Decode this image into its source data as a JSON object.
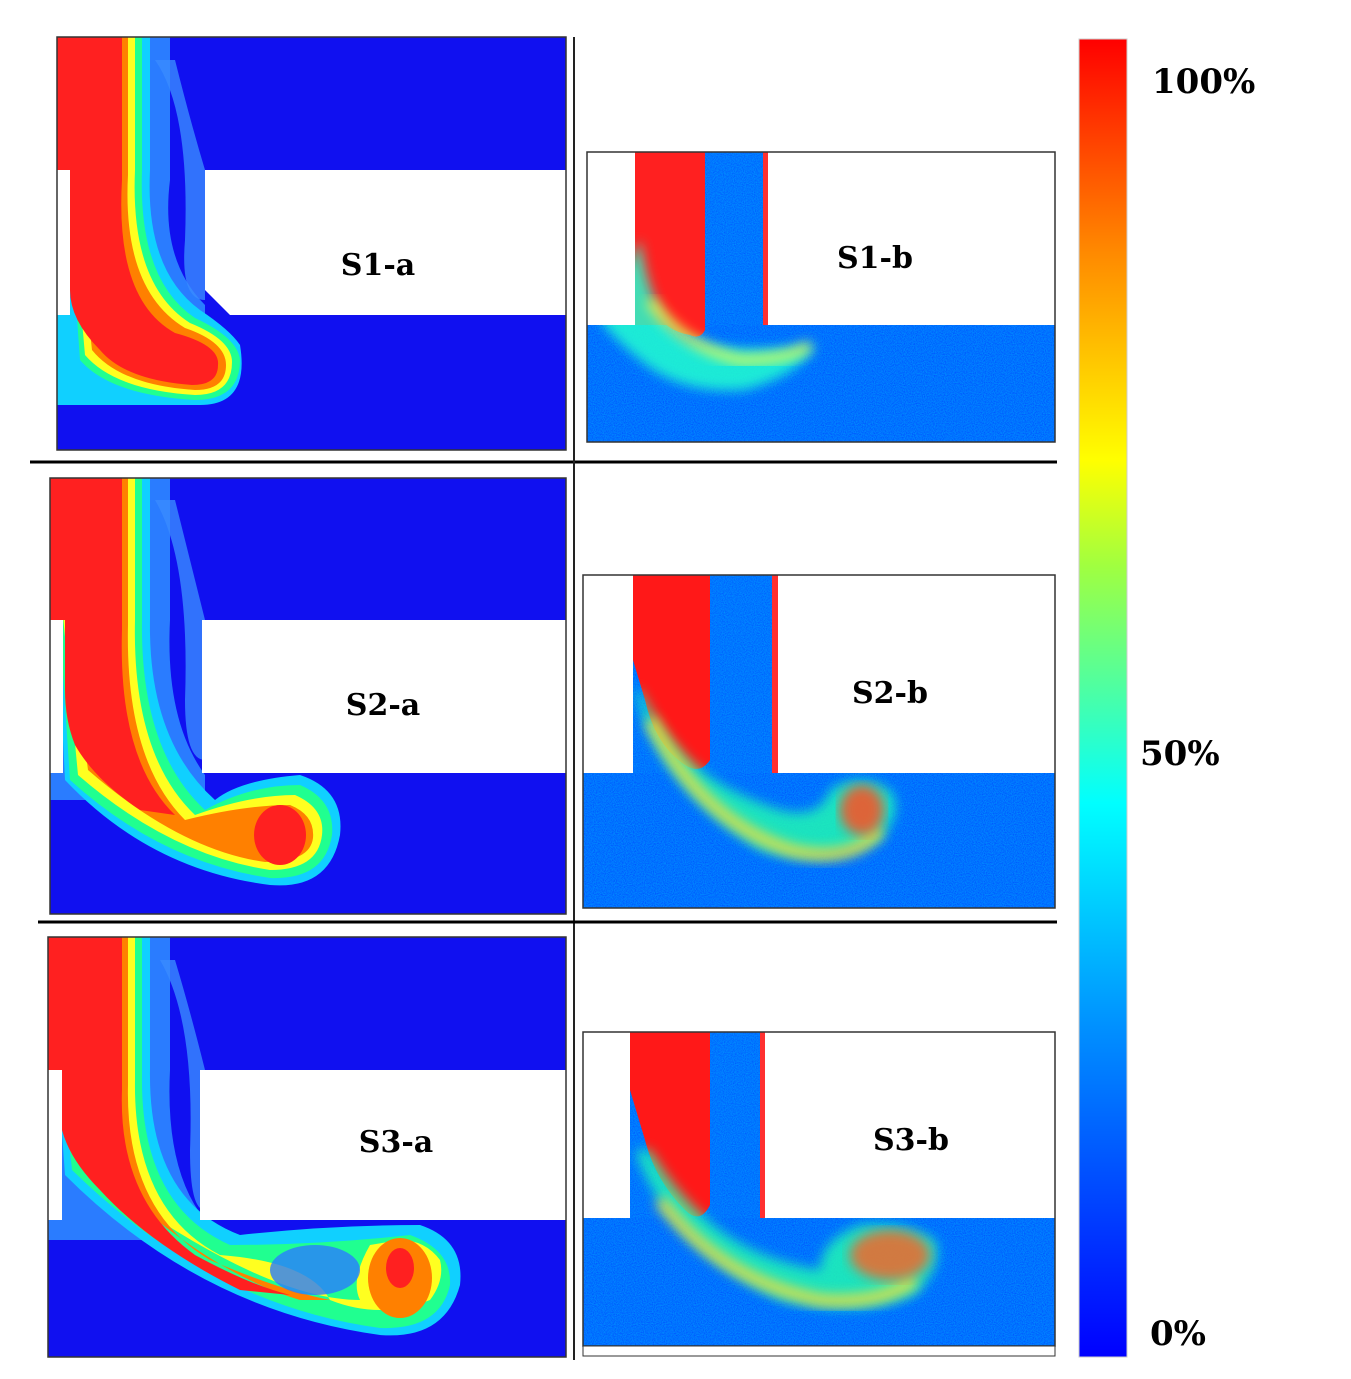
{
  "panels": [
    {
      "label": "S1-a"
    },
    {
      "label": "S1-b"
    },
    {
      "label": "S2-a"
    },
    {
      "label": "S2-b"
    },
    {
      "label": "S3-a"
    },
    {
      "label": "S3-b"
    }
  ],
  "colorbar": {
    "ticks": [
      "100%",
      "50%",
      "0%"
    ],
    "colors": [
      "#ff1010",
      "#ff8800",
      "#ffff00",
      "#00ffff",
      "#0a0aff"
    ]
  }
}
